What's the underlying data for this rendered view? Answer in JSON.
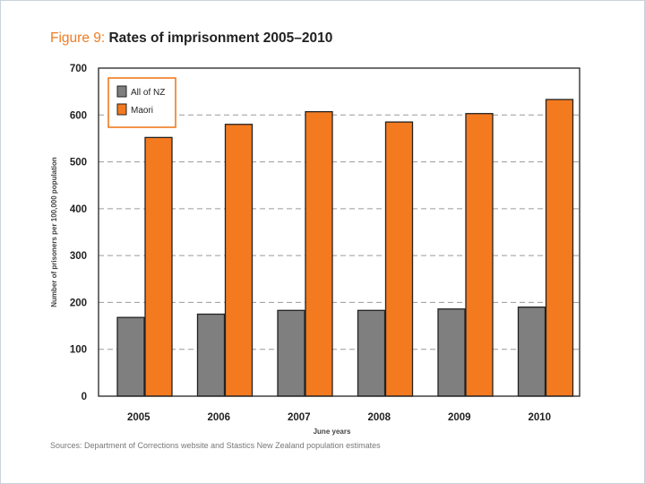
{
  "header": {
    "figure_label": "Figure 9:",
    "title": "Rates of imprisonment 2005–2010"
  },
  "footer": {
    "source": "Sources: Department of Corrections website and Stastics New Zealand population estimates"
  },
  "colors": {
    "accent": "#f07b21",
    "all_nz": "#7f7f7f",
    "maori": "#f47a20",
    "grid": "#9a9a9a"
  },
  "chart_data": {
    "type": "bar",
    "title": "Rates of imprisonment 2005–2010",
    "xlabel": "June years",
    "ylabel": "Number of prisoners per 100,000 population",
    "categories": [
      "2005",
      "2006",
      "2007",
      "2008",
      "2009",
      "2010"
    ],
    "ylim": [
      0,
      700
    ],
    "yticks": [
      0,
      100,
      200,
      300,
      400,
      500,
      600,
      700
    ],
    "grid": true,
    "legend_position": "top-left",
    "series": [
      {
        "name": "All of NZ",
        "color": "#7f7f7f",
        "values": [
          168,
          175,
          183,
          183,
          186,
          190
        ]
      },
      {
        "name": "Maori",
        "color": "#f47a20",
        "values": [
          552,
          580,
          607,
          585,
          603,
          633
        ]
      }
    ]
  }
}
